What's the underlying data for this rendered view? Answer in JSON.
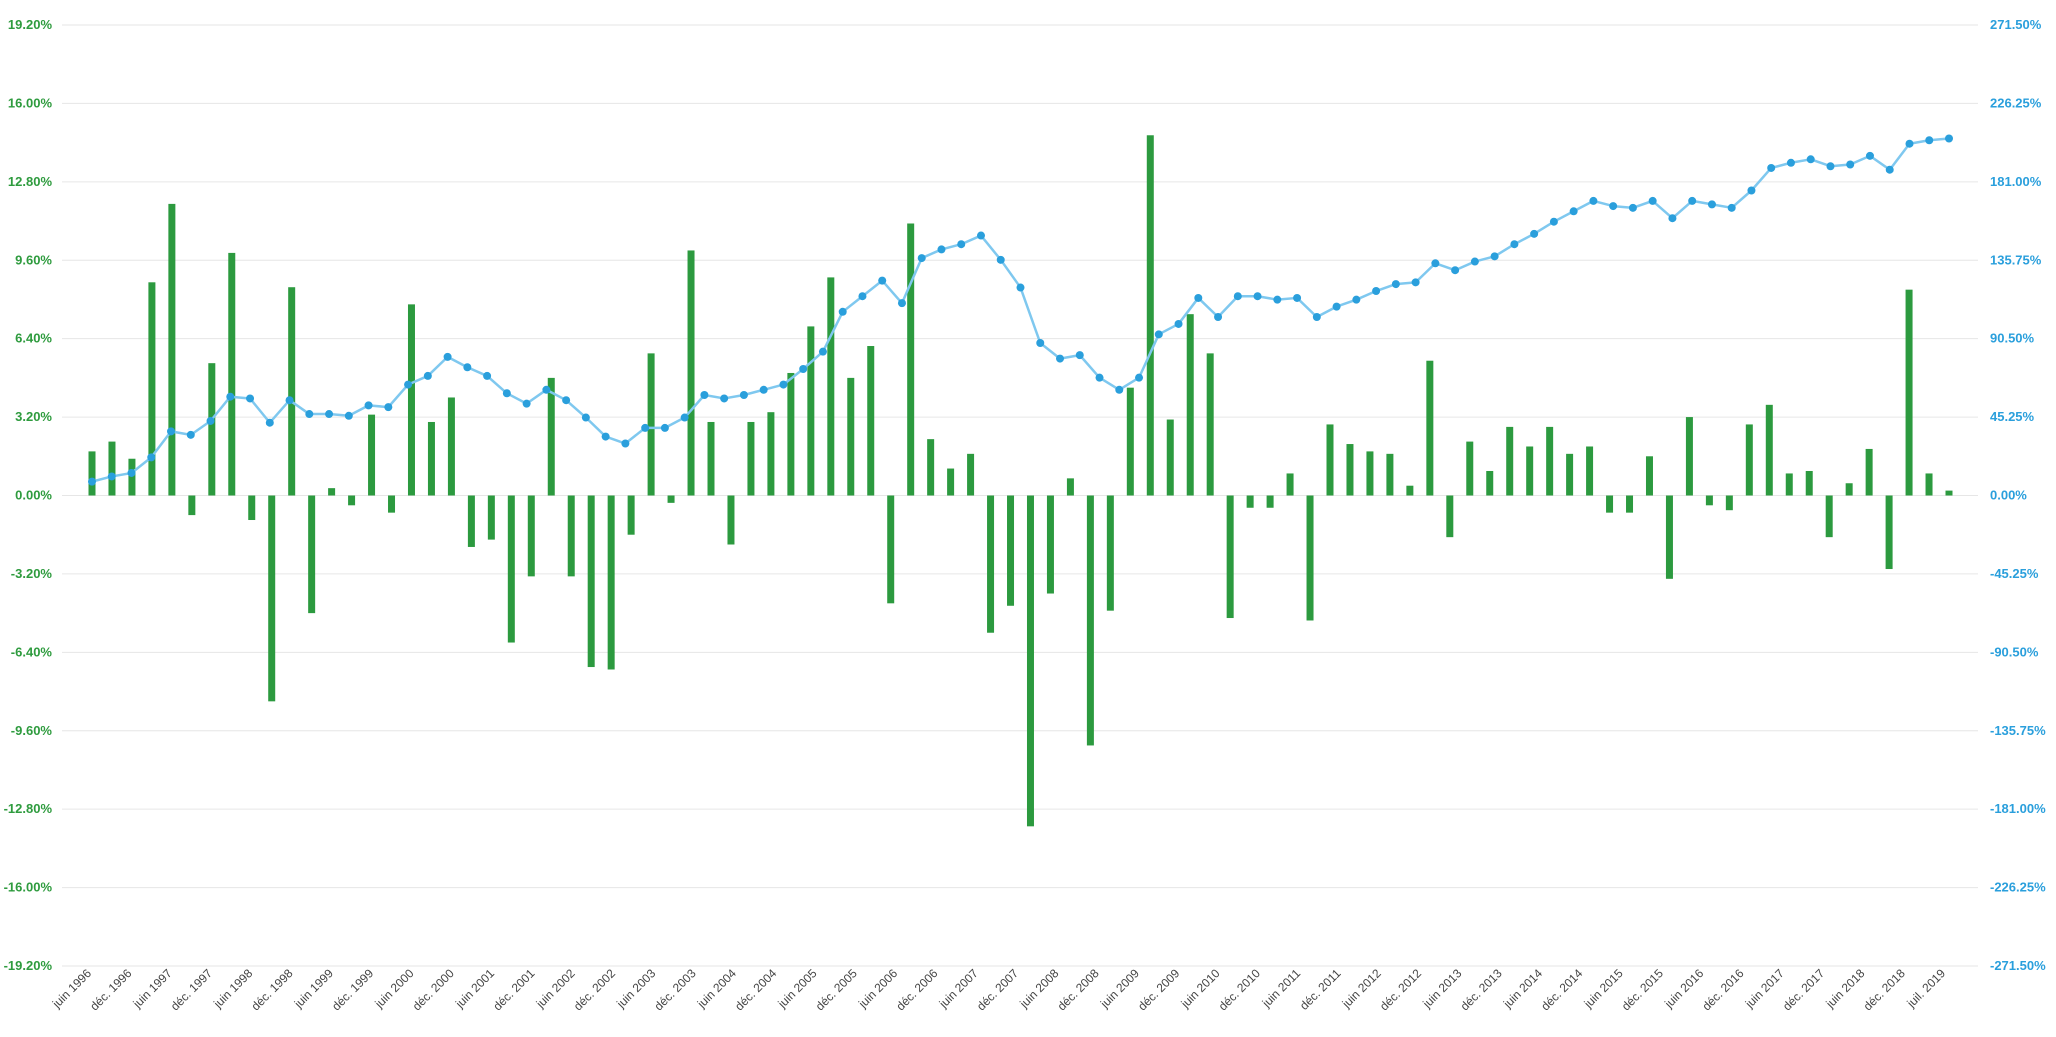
{
  "chart_data": {
    "type": "bar",
    "title": "",
    "xlabel": "",
    "ylabel": "",
    "colors": {
      "bars": "#2c9a3f",
      "line": "#7fc8ef",
      "markers": "#2a9fdc",
      "grid": "#e6e6e6",
      "left_axis": "#2e9b3e",
      "right_axis": "#2a9fdc"
    },
    "grid": true,
    "legend": "none",
    "x_tick_labels": [
      "juin 1996",
      "déc. 1996",
      "juin 1997",
      "déc. 1997",
      "juin 1998",
      "déc. 1998",
      "juin 1999",
      "déc. 1999",
      "juin 2000",
      "déc. 2000",
      "juin 2001",
      "déc. 2001",
      "juin 2002",
      "déc. 2002",
      "juin 2003",
      "déc. 2003",
      "juin 2004",
      "déc. 2004",
      "juin 2005",
      "déc. 2005",
      "juin 2006",
      "déc. 2006",
      "juin 2007",
      "déc. 2007",
      "juin 2008",
      "déc. 2008",
      "juin 2009",
      "déc. 2009",
      "juin 2010",
      "déc. 2010",
      "juin 2011",
      "déc. 2011",
      "juin 2012",
      "déc. 2012",
      "juin 2013",
      "déc. 2013",
      "juin 2014",
      "déc. 2014",
      "juin 2015",
      "déc. 2015",
      "juin 2016",
      "déc. 2016",
      "juin 2017",
      "déc. 2017",
      "juin 2018",
      "déc. 2018",
      "juil. 2019"
    ],
    "y_left": {
      "ylim": [
        -19.2,
        19.2
      ],
      "ticks": [
        "19.20%",
        "16.00%",
        "12.80%",
        "9.60%",
        "6.40%",
        "3.20%",
        "0.00%",
        "-3.20%",
        "-6.40%",
        "-9.60%",
        "-12.80%",
        "-16.00%",
        "-19.20%"
      ]
    },
    "y_right": {
      "ylim": [
        -271.5,
        271.5
      ],
      "ticks": [
        "271.50%",
        "226.25%",
        "181.00%",
        "135.75%",
        "90.50%",
        "45.25%",
        "0.00%",
        "-45.25%",
        "-90.50%",
        "-135.75%",
        "-181.00%",
        "-226.25%",
        "-271.50%"
      ]
    },
    "series": [
      {
        "type": "bar",
        "axis": "left",
        "values": [
          1.8,
          2.2,
          1.5,
          8.7,
          11.9,
          -0.8,
          5.4,
          9.9,
          -1.0,
          -8.4,
          8.5,
          -4.8,
          0.3,
          -0.4,
          3.3,
          -0.7,
          7.8,
          3.0,
          4.0,
          -2.1,
          -1.8,
          -6.0,
          -3.3,
          4.8,
          -3.3,
          -7.0,
          -7.1,
          -1.6,
          5.8,
          -0.3,
          10.0,
          3.0,
          -2.0,
          3.0,
          3.4,
          5.0,
          6.9,
          8.9,
          4.8,
          6.1,
          -4.4,
          11.1,
          2.3,
          1.1,
          1.7,
          -5.6,
          -4.5,
          -13.5,
          -4.0,
          0.7,
          -10.2,
          -4.7,
          4.4,
          14.7,
          3.1,
          7.4,
          5.8,
          -5.0,
          -0.5,
          -0.5,
          0.9,
          -5.1,
          2.9,
          2.1,
          1.8,
          1.7,
          0.4,
          5.5,
          -1.7,
          2.2,
          1.0,
          2.8,
          2.0,
          2.8,
          1.7,
          2.0,
          -0.7,
          -0.7,
          1.6,
          -3.4,
          3.2,
          -0.4,
          -0.6,
          2.9,
          3.7,
          0.9,
          1.0,
          -1.7,
          0.5,
          1.9,
          -3.0,
          8.4,
          0.9,
          0.2
        ]
      },
      {
        "type": "line",
        "axis": "right",
        "values": [
          8,
          11,
          13,
          22,
          37,
          35,
          43,
          57,
          56,
          42,
          55,
          47,
          47,
          46,
          52,
          51,
          64,
          69,
          80,
          74,
          69,
          59,
          53,
          61,
          55,
          45,
          34,
          30,
          39,
          39,
          45,
          58,
          56,
          58,
          61,
          64,
          73,
          83,
          106,
          115,
          124,
          111,
          137,
          142,
          145,
          150,
          136,
          120,
          88,
          79,
          81,
          68,
          61,
          68,
          93,
          99,
          114,
          103,
          115,
          115,
          113,
          114,
          103,
          109,
          113,
          118,
          122,
          123,
          134,
          130,
          135,
          138,
          145,
          151,
          158,
          164,
          170,
          167,
          166,
          170,
          160,
          170,
          168,
          166,
          176,
          189,
          192,
          194,
          190,
          191,
          196,
          188,
          203,
          205,
          206
        ]
      }
    ]
  }
}
